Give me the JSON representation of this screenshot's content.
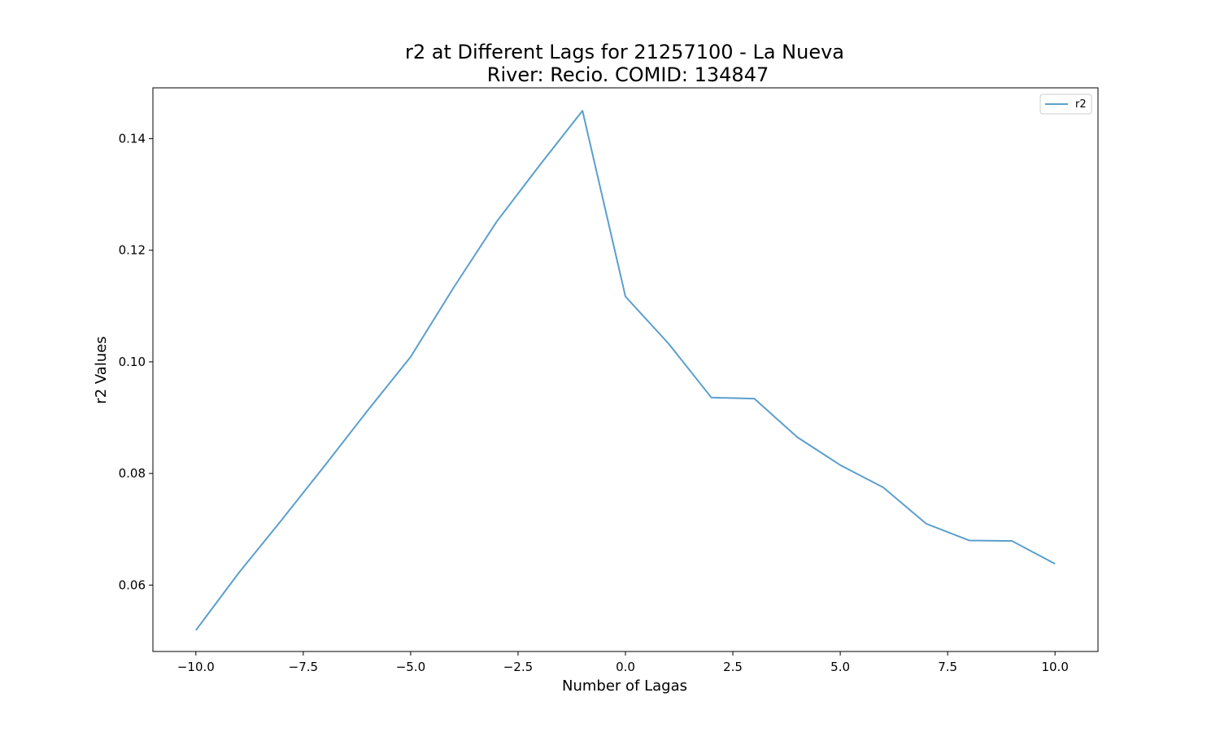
{
  "chart_data": {
    "type": "line",
    "title": "r2 at Different Lags for 21257100 - La Nueva",
    "subtitle": "River: Recio. COMID: 134847",
    "xlabel": "Number of Lagas",
    "ylabel": "r2 Values",
    "xlim": [
      -11,
      11
    ],
    "ylim": [
      0.0481,
      0.1491
    ],
    "xticks": [
      -10.0,
      -7.5,
      -5.0,
      -2.5,
      0.0,
      2.5,
      5.0,
      7.5,
      10.0
    ],
    "xtick_labels": [
      "−10.0",
      "−7.5",
      "−5.0",
      "−2.5",
      "0.0",
      "2.5",
      "5.0",
      "7.5",
      "10.0"
    ],
    "yticks": [
      0.06,
      0.08,
      0.1,
      0.12,
      0.14
    ],
    "ytick_labels": [
      "0.06",
      "0.08",
      "0.10",
      "0.12",
      "0.14"
    ],
    "grid": false,
    "legend_position": "top-right",
    "series": [
      {
        "name": "r2",
        "color": "#5b9fcd",
        "x": [
          -10,
          -9,
          -8,
          -7,
          -6,
          -5,
          -4,
          -3,
          -2,
          -1,
          0,
          1,
          2,
          3,
          4,
          5,
          6,
          7,
          8,
          9,
          10
        ],
        "y": [
          0.0519,
          0.0622,
          0.0717,
          0.0814,
          0.0913,
          0.1009,
          0.1133,
          0.1251,
          0.1352,
          0.145,
          0.1117,
          0.1033,
          0.0936,
          0.0934,
          0.0865,
          0.0815,
          0.0775,
          0.071,
          0.068,
          0.0679,
          0.0638
        ]
      }
    ]
  }
}
